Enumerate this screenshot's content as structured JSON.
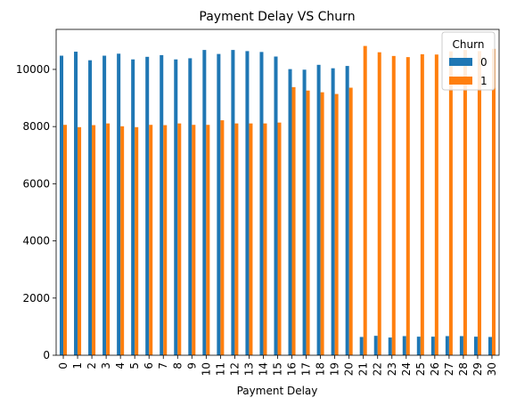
{
  "chart_data": {
    "type": "bar",
    "title": "Payment Delay VS Churn",
    "xlabel": "Payment Delay",
    "ylabel": "",
    "categories": [
      "0",
      "1",
      "2",
      "3",
      "4",
      "5",
      "6",
      "7",
      "8",
      "9",
      "10",
      "11",
      "12",
      "13",
      "14",
      "15",
      "16",
      "17",
      "18",
      "19",
      "20",
      "21",
      "22",
      "23",
      "24",
      "25",
      "26",
      "27",
      "28",
      "29",
      "30"
    ],
    "ylim": [
      0,
      11400
    ],
    "yticks": [
      0,
      2000,
      4000,
      6000,
      8000,
      10000
    ],
    "legend": {
      "title": "Churn",
      "placement": "top-right"
    },
    "series": [
      {
        "name": "0",
        "color": "#1f77b4",
        "values": [
          10480,
          10620,
          10320,
          10480,
          10550,
          10350,
          10440,
          10500,
          10350,
          10390,
          10680,
          10540,
          10680,
          10640,
          10610,
          10450,
          10010,
          9990,
          10160,
          10040,
          10120,
          640,
          680,
          620,
          670,
          650,
          650,
          670,
          670,
          650,
          640
        ]
      },
      {
        "name": "1",
        "color": "#ff7f0e",
        "values": [
          8060,
          7980,
          8050,
          8110,
          8010,
          7980,
          8060,
          8050,
          8110,
          8060,
          8060,
          8220,
          8110,
          8110,
          8110,
          8140,
          9380,
          9260,
          9200,
          9140,
          9360,
          10820,
          10600,
          10470,
          10430,
          10530,
          10520,
          10630,
          10680,
          10640,
          10720
        ]
      }
    ]
  }
}
